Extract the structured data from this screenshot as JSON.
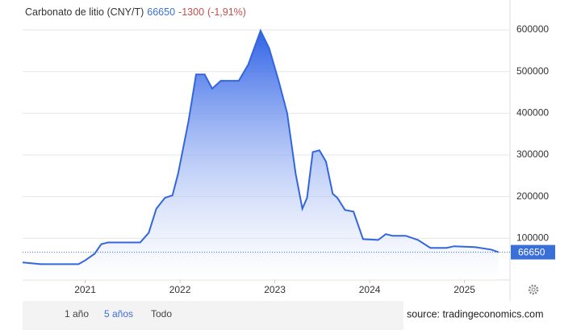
{
  "chart_data": {
    "type": "area",
    "title": "Carbonato de litio (CNY/T)",
    "last_value": 66650,
    "change": -1300,
    "change_pct": "(-1,91%)",
    "x": [
      2020.34,
      2020.53,
      2020.93,
      2021.0,
      2021.1,
      2021.17,
      2021.24,
      2021.58,
      2021.67,
      2021.75,
      2021.84,
      2021.92,
      2021.98,
      2022.09,
      2022.17,
      2022.26,
      2022.34,
      2022.43,
      2022.62,
      2022.72,
      2022.85,
      2022.94,
      2023.04,
      2023.13,
      2023.22,
      2023.29,
      2023.34,
      2023.4,
      2023.47,
      2023.54,
      2023.61,
      2023.66,
      2023.74,
      2023.83,
      2023.93,
      2024.09,
      2024.17,
      2024.24,
      2024.38,
      2024.51,
      2024.64,
      2024.81,
      2024.89,
      2025.11,
      2025.28,
      2025.36
    ],
    "values": [
      42000,
      38000,
      38000,
      47000,
      63000,
      86000,
      90000,
      90000,
      113000,
      171000,
      197000,
      203000,
      255000,
      381000,
      493000,
      493000,
      459000,
      478000,
      478000,
      517000,
      598000,
      556000,
      478000,
      400000,
      255000,
      171000,
      197000,
      307000,
      311000,
      284000,
      207000,
      197000,
      168000,
      164000,
      98000,
      96000,
      110000,
      106000,
      106000,
      96000,
      77000,
      77000,
      81000,
      79000,
      73000,
      66650
    ],
    "color": "#3366dd",
    "xlim": [
      2020.34,
      2025.48
    ],
    "xticks": [
      2021,
      2022,
      2023,
      2024,
      2025
    ],
    "ylim": [
      0,
      662000
    ],
    "yticks": [
      100000,
      200000,
      300000,
      400000,
      500000,
      600000
    ],
    "grid": true
  },
  "range_buttons": [
    "1 año",
    "5 años",
    "Todo"
  ],
  "active_range": 1,
  "source": "source: tradingeconomics.com"
}
